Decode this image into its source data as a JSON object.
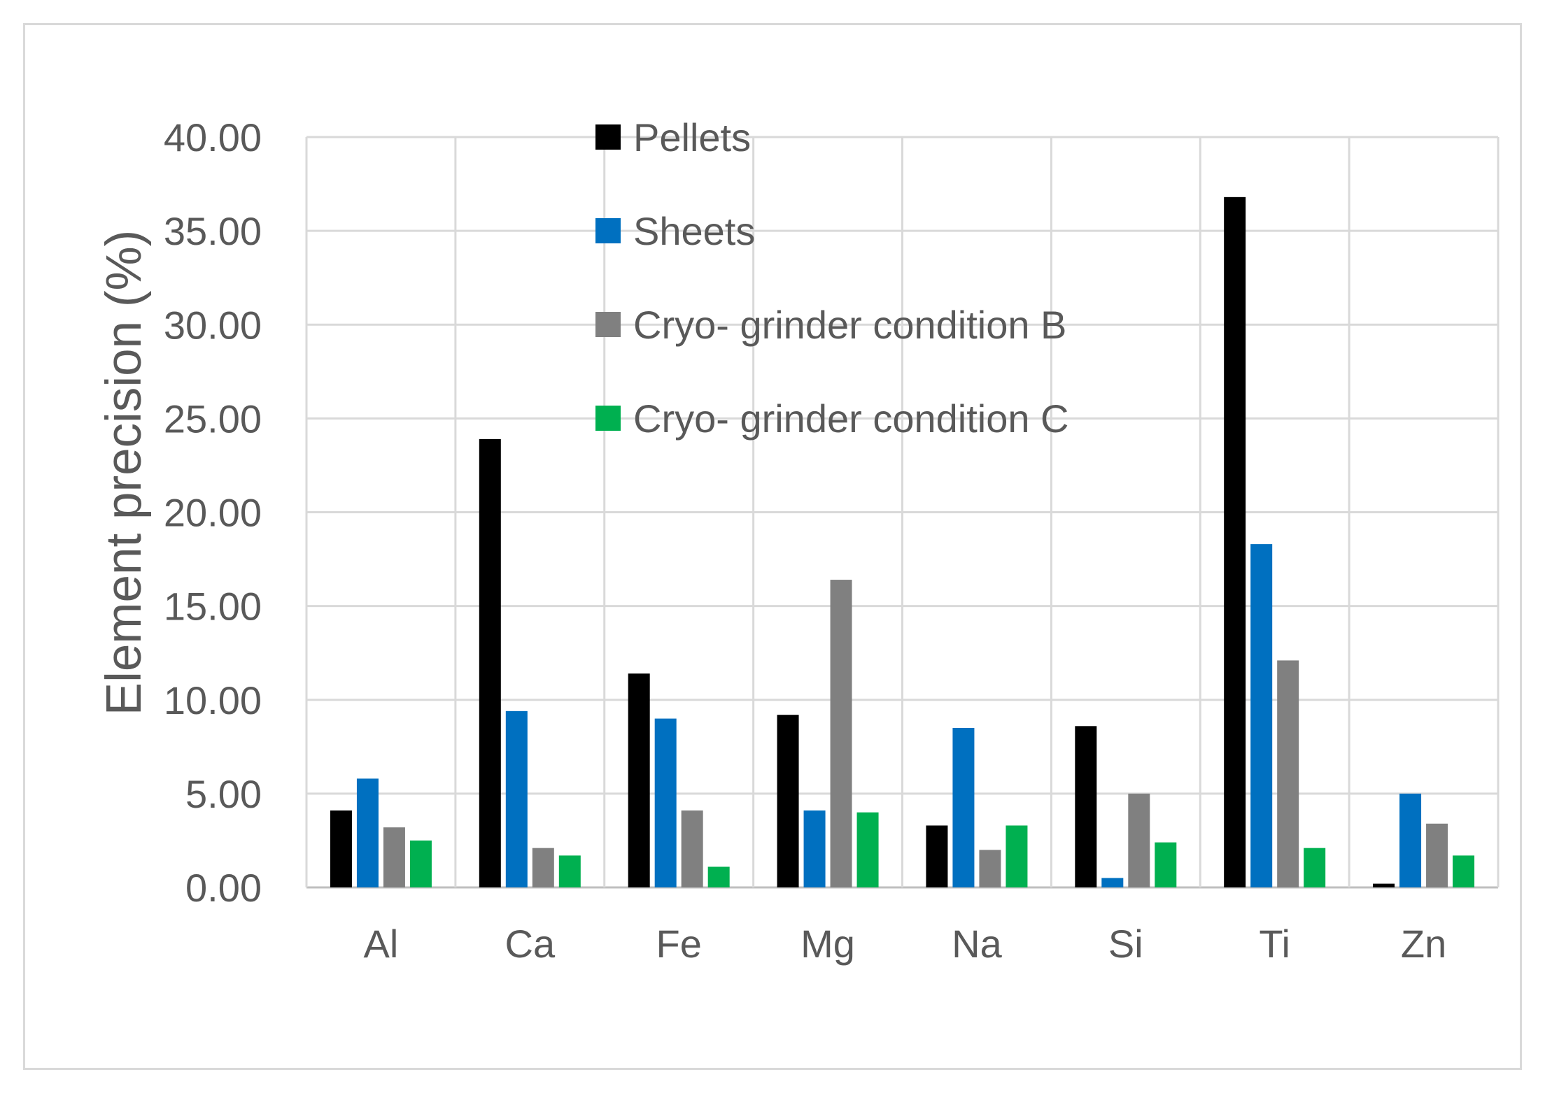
{
  "chart_data": {
    "type": "bar",
    "title": "",
    "xlabel": "",
    "ylabel": "Element precision (%)",
    "categories": [
      "Al",
      "Ca",
      "Fe",
      "Mg",
      "Na",
      "Si",
      "Ti",
      "Zn"
    ],
    "ylim": [
      0,
      40
    ],
    "yticks": [
      "0.00",
      "5.00",
      "10.00",
      "15.00",
      "20.00",
      "25.00",
      "30.00",
      "35.00",
      "40.00"
    ],
    "grid": true,
    "legend_position": "top-center",
    "series": [
      {
        "name": "Pellets",
        "color": "#000000",
        "values": [
          4.1,
          23.9,
          11.4,
          9.2,
          3.3,
          8.6,
          36.8,
          0.2
        ]
      },
      {
        "name": "Sheets",
        "color": "#0070c0",
        "values": [
          5.8,
          9.4,
          9.0,
          4.1,
          8.5,
          0.5,
          18.3,
          5.0
        ]
      },
      {
        "name": "Cryo- grinder condition B",
        "color": "#808080",
        "values": [
          3.2,
          2.1,
          4.1,
          16.4,
          2.0,
          5.0,
          12.1,
          3.4
        ]
      },
      {
        "name": "Cryo- grinder condition C",
        "color": "#00b050",
        "values": [
          2.5,
          1.7,
          1.1,
          4.0,
          3.3,
          2.4,
          2.1,
          1.7
        ]
      }
    ]
  }
}
